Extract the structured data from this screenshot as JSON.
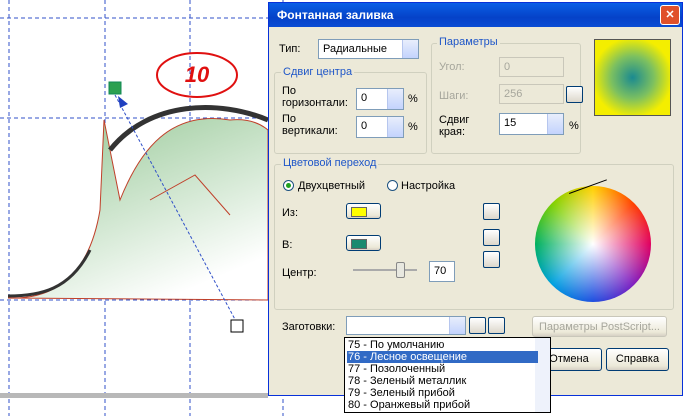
{
  "badge": "10",
  "dialog": {
    "title": "Фонтанная заливка",
    "type_label": "Тип:",
    "type_value": "Радиальные",
    "center_offset": {
      "title": "Сдвиг центра",
      "horizontal_label": "По горизонтали:",
      "horizontal_value": "0",
      "vertical_label": "По вертикали:",
      "vertical_value": "0",
      "unit": "%"
    },
    "params": {
      "title": "Параметры",
      "angle_label": "Угол:",
      "angle_value": "0",
      "steps_label": "Шаги:",
      "steps_value": "256",
      "edge_label": "Сдвиг края:",
      "edge_value": "15",
      "unit": "%"
    },
    "blend": {
      "title": "Цветовой переход",
      "two_color": "Двухцветный",
      "custom": "Настройка",
      "from_label": "Из:",
      "to_label": "В:",
      "mid_label": "Центр:",
      "mid_value": "70"
    },
    "presets_label": "Заготовки:",
    "postscript_button": "Параметры PostScript...",
    "cancel_button": "Отмена",
    "help_button": "Справка",
    "preset_list": [
      "75 - По умолчанию",
      "76 - Лесное освещение",
      "77 - Позолоченный",
      "78 - Зеленый металлик",
      "79 - Зеленый прибой",
      "80 - Оранжевый прибой"
    ],
    "selected_preset": 1
  }
}
